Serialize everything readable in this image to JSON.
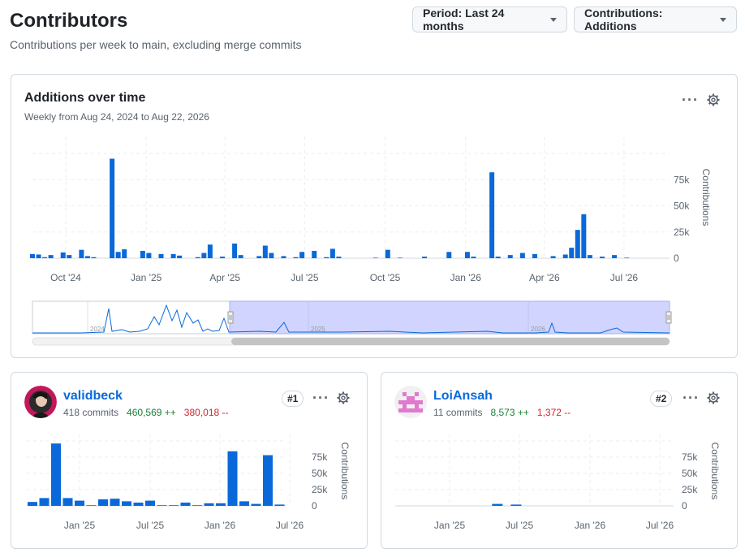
{
  "page": {
    "title": "Contributors",
    "subtitle": "Contributions per week to main, excluding merge commits"
  },
  "controls": {
    "period_label": "Period: Last 24 months",
    "contributions_label": "Contributions: Additions"
  },
  "main_chart": {
    "title": "Additions over time",
    "subtitle": "Weekly from Aug 24, 2024 to Aug 22, 2026",
    "axis_label": "Contributions",
    "x_ticks": [
      "Oct '24",
      "Jan '25",
      "Apr '25",
      "Jul '25",
      "Oct '25",
      "Jan '26",
      "Apr '26",
      "Jul '26"
    ],
    "y_ticks": [
      "0",
      "25k",
      "50k",
      "75k"
    ],
    "overview_years": [
      "2024",
      "2025",
      "2026"
    ]
  },
  "contributors": [
    {
      "username": "validbeck",
      "commits": "418 commits",
      "additions": "460,569 ++",
      "deletions": "380,018 --",
      "rank": "#1",
      "axis_label": "Contributions",
      "x_ticks": [
        "Jan '25",
        "Jul '25",
        "Jan '26",
        "Jul '26"
      ],
      "y_ticks": [
        "0",
        "25k",
        "50k",
        "75k"
      ]
    },
    {
      "username": "LoiAnsah",
      "commits": "11 commits",
      "additions": "8,573 ++",
      "deletions": "1,372 --",
      "rank": "#2",
      "axis_label": "Contributions",
      "x_ticks": [
        "Jan '25",
        "Jul '25",
        "Jan '26",
        "Jul '26"
      ],
      "y_ticks": [
        "0",
        "25k",
        "50k",
        "75k"
      ]
    }
  ],
  "colors": {
    "bar": "#0969da",
    "accent": "#0969da",
    "selection": "#d0d4ff",
    "add": "#1a7f37",
    "del": "#d1242f"
  },
  "chart_data": [
    {
      "type": "bar",
      "title": "Additions over time",
      "ylabel": "Contributions",
      "ylim": [
        0,
        100000
      ],
      "x_range": [
        "2024-08-24",
        "2026-08-22"
      ],
      "series": [
        {
          "x": [
            "2024-08-24",
            "2024-08-31",
            "2024-09-07",
            "2024-09-14",
            "2024-09-28",
            "2024-10-05",
            "2024-10-19",
            "2024-10-26",
            "2024-11-02",
            "2024-11-23",
            "2024-11-30",
            "2024-12-07",
            "2024-12-28",
            "2025-01-04",
            "2025-01-18",
            "2025-02-01",
            "2025-02-08",
            "2025-03-01",
            "2025-03-08",
            "2025-03-15",
            "2025-03-29",
            "2025-04-12",
            "2025-04-19",
            "2025-05-10",
            "2025-05-17",
            "2025-05-24",
            "2025-06-07",
            "2025-06-21",
            "2025-06-28",
            "2025-07-12",
            "2025-07-26",
            "2025-08-02",
            "2025-08-09",
            "2025-09-20",
            "2025-10-04",
            "2025-10-18",
            "2025-11-15",
            "2025-12-13",
            "2026-01-03",
            "2026-01-10",
            "2026-01-31",
            "2026-02-07",
            "2026-02-21",
            "2026-03-07",
            "2026-03-21",
            "2026-04-11",
            "2026-04-25",
            "2026-05-02",
            "2026-05-09",
            "2026-05-16",
            "2026-05-23",
            "2026-06-06",
            "2026-06-20",
            "2026-07-04"
          ],
          "values": [
            4000,
            3500,
            1000,
            3000,
            5500,
            3000,
            8000,
            2000,
            1000,
            95000,
            6000,
            8500,
            7000,
            5000,
            4000,
            4000,
            2500,
            1000,
            5000,
            13000,
            1500,
            14000,
            3000,
            2000,
            12000,
            5000,
            2000,
            1000,
            6000,
            7000,
            1000,
            9000,
            1500,
            500,
            8000,
            500,
            1500,
            6000,
            6000,
            1500,
            82000,
            1500,
            3000,
            5000,
            4000,
            2000,
            3500,
            10000,
            27000,
            42000,
            3000,
            1500,
            3000,
            500
          ]
        }
      ]
    },
    {
      "type": "bar",
      "title": "validbeck",
      "ylabel": "Contributions",
      "ylim": [
        0,
        100000
      ],
      "series": [
        {
          "name": "validbeck",
          "values": [
            6000,
            12000,
            96000,
            12000,
            8000,
            1000,
            10000,
            11000,
            7000,
            5000,
            8000,
            1000,
            1000,
            5000,
            1000,
            4000,
            4000,
            84000,
            7000,
            3000,
            78000,
            2000
          ]
        }
      ]
    },
    {
      "type": "bar",
      "title": "LoiAnsah",
      "ylabel": "Contributions",
      "ylim": [
        0,
        100000
      ],
      "series": [
        {
          "name": "LoiAnsah",
          "x": [
            "2025-05-17",
            "2025-07-05"
          ],
          "values": [
            3000,
            2000
          ]
        }
      ]
    }
  ]
}
